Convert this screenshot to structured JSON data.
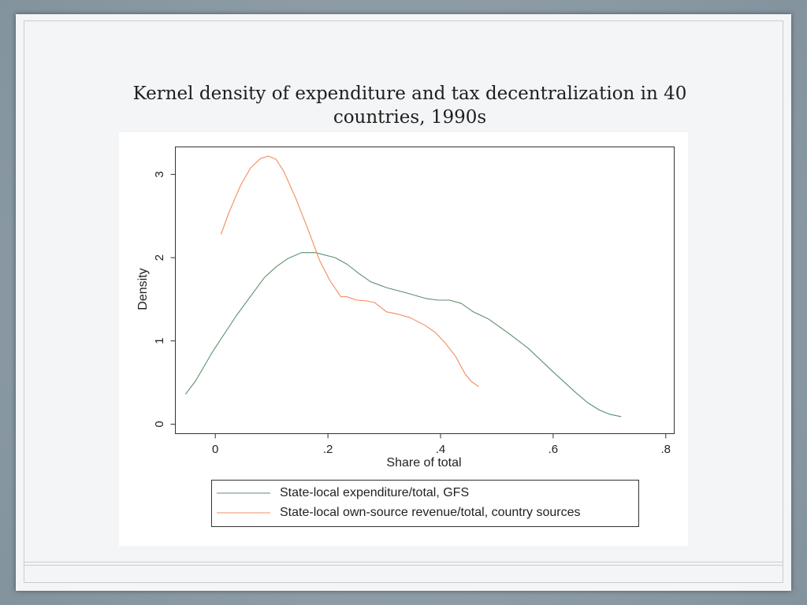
{
  "chart_data": {
    "type": "line",
    "title_lines": [
      "Kernel density of expenditure and tax decentralization in 40",
      "countries, 1990s"
    ],
    "xlabel": "Share of total",
    "ylabel": "Density",
    "xlim": [
      -0.071,
      0.815
    ],
    "ylim": [
      -0.114,
      3.33
    ],
    "x_ticks": {
      "values": [
        0,
        0.2,
        0.4,
        0.6,
        0.8
      ],
      "labels": [
        "0",
        ".2",
        ".4",
        ".6",
        ".8"
      ]
    },
    "y_ticks": {
      "values": [
        0,
        1,
        2,
        3
      ],
      "labels": [
        "0",
        "1",
        "2",
        "3"
      ]
    },
    "grid": false,
    "legend": {
      "placement": "bottom"
    },
    "series": [
      {
        "name": "State-local expenditure/total, GFS",
        "color": "#5e8f6e",
        "x": [
          -0.053,
          -0.035,
          -0.004,
          0.038,
          0.087,
          0.108,
          0.129,
          0.153,
          0.178,
          0.213,
          0.234,
          0.255,
          0.276,
          0.304,
          0.332,
          0.374,
          0.395,
          0.416,
          0.437,
          0.458,
          0.486,
          0.521,
          0.556,
          0.598,
          0.64,
          0.661,
          0.682,
          0.7,
          0.721
        ],
        "y": [
          0.36,
          0.52,
          0.88,
          1.31,
          1.76,
          1.89,
          1.99,
          2.06,
          2.06,
          2.0,
          1.92,
          1.81,
          1.71,
          1.64,
          1.59,
          1.51,
          1.49,
          1.49,
          1.45,
          1.35,
          1.26,
          1.09,
          0.91,
          0.64,
          0.38,
          0.26,
          0.17,
          0.12,
          0.09
        ]
      },
      {
        "name": "State-local own-source revenue/total, country sources",
        "color": "#f28c5e",
        "x": [
          0.01,
          0.024,
          0.045,
          0.063,
          0.08,
          0.094,
          0.108,
          0.122,
          0.143,
          0.164,
          0.185,
          0.203,
          0.223,
          0.234,
          0.251,
          0.27,
          0.283,
          0.304,
          0.325,
          0.346,
          0.374,
          0.391,
          0.409,
          0.427,
          0.444,
          0.455,
          0.468
        ],
        "y": [
          2.28,
          2.54,
          2.87,
          3.08,
          3.19,
          3.22,
          3.18,
          3.03,
          2.71,
          2.35,
          1.97,
          1.73,
          1.53,
          1.53,
          1.49,
          1.48,
          1.46,
          1.35,
          1.32,
          1.28,
          1.18,
          1.1,
          0.97,
          0.81,
          0.6,
          0.51,
          0.45
        ]
      }
    ]
  }
}
